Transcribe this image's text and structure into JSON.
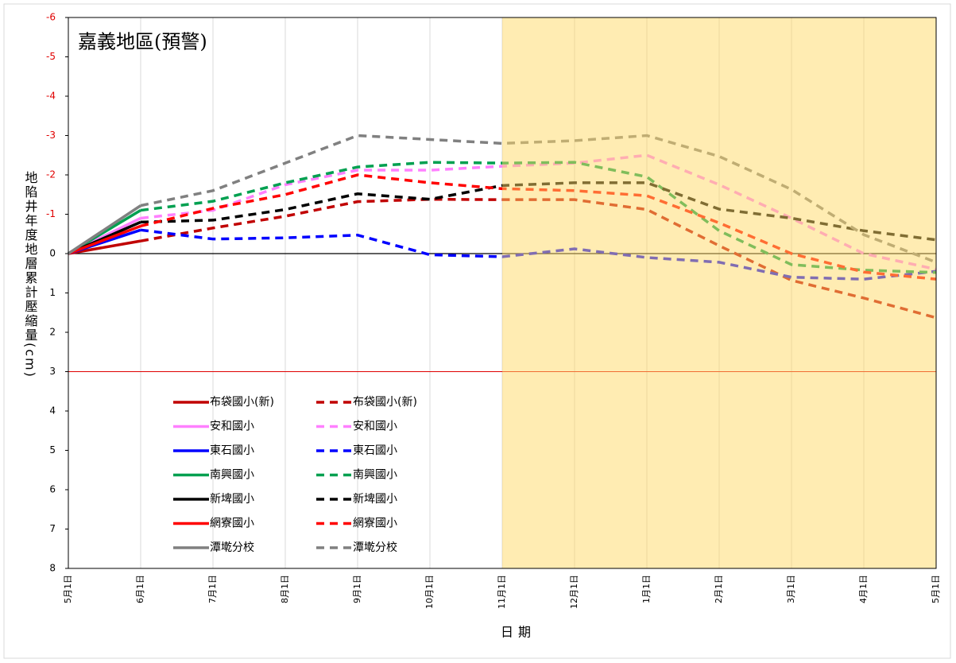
{
  "chart_data": {
    "type": "line",
    "title": "嘉義地區(預警)",
    "xlabel": "日期",
    "ylabel": "地陷井年度地層累計壓縮量(cm)",
    "categories": [
      "5月1日",
      "6月1日",
      "7月1日",
      "8月1日",
      "9月1日",
      "10月1日",
      "11月1日",
      "12月1日",
      "1月1日",
      "2月1日",
      "3月1日",
      "4月1日",
      "5月1日"
    ],
    "ylim": [
      -6,
      8
    ],
    "y_reversed": true,
    "yticks": [
      -6,
      -5,
      -4,
      -3,
      -2,
      -1,
      0,
      1,
      2,
      3,
      4,
      5,
      6,
      7,
      8
    ],
    "negative_tick_color": "#e00000",
    "xgrid": true,
    "zero_line_color": "#000000",
    "threshold": {
      "value": 3,
      "color": "#e00000"
    },
    "shade": {
      "from": 6,
      "to": 12,
      "color": "#ffd966",
      "opacity": 0.5
    },
    "legend": "lower left",
    "series": [
      {
        "name": "布袋國小(新)",
        "color": "#c00000",
        "dash": false,
        "values": [
          0,
          -0.32,
          null,
          null,
          null,
          null,
          null,
          null,
          null,
          null,
          null,
          null,
          null
        ]
      },
      {
        "name": "布袋國小(新)",
        "color": "#c00000",
        "dash": true,
        "values": [
          null,
          -0.32,
          -0.65,
          -0.95,
          -1.32,
          -1.38,
          -1.37,
          -1.37,
          -1.12,
          -0.2,
          0.68,
          1.13,
          1.63
        ]
      },
      {
        "name": "安和國小",
        "color": "#ff80ff",
        "dash": false,
        "values": [
          0,
          -0.9,
          null,
          null,
          null,
          null,
          null,
          null,
          null,
          null,
          null,
          null,
          null
        ]
      },
      {
        "name": "安和國小",
        "color": "#ff80ff",
        "dash": true,
        "values": [
          null,
          -0.9,
          -1.1,
          -1.75,
          -2.12,
          -2.12,
          -2.22,
          -2.3,
          -2.5,
          -1.75,
          -0.9,
          0,
          0.4
        ]
      },
      {
        "name": "東石國小",
        "color": "#0000ff",
        "dash": false,
        "values": [
          0,
          -0.6,
          null,
          null,
          null,
          null,
          null,
          null,
          null,
          null,
          null,
          null,
          null
        ]
      },
      {
        "name": "東石國小",
        "color": "#0000ff",
        "dash": true,
        "values": [
          null,
          -0.6,
          -0.37,
          -0.4,
          -0.47,
          0.03,
          0.08,
          -0.12,
          0.1,
          0.22,
          0.6,
          0.65,
          0.45
        ]
      },
      {
        "name": "南興國小",
        "color": "#00a050",
        "dash": false,
        "values": [
          0,
          -1.1,
          null,
          null,
          null,
          null,
          null,
          null,
          null,
          null,
          null,
          null,
          null
        ]
      },
      {
        "name": "南興國小",
        "color": "#00a050",
        "dash": true,
        "values": [
          null,
          -1.1,
          -1.33,
          -1.8,
          -2.2,
          -2.32,
          -2.3,
          -2.32,
          -1.95,
          -0.58,
          0.28,
          0.42,
          0.48
        ]
      },
      {
        "name": "新埤國小",
        "color": "#000000",
        "dash": false,
        "values": [
          0,
          -0.8,
          null,
          null,
          null,
          null,
          null,
          null,
          null,
          null,
          null,
          null,
          null
        ]
      },
      {
        "name": "新埤國小",
        "color": "#000000",
        "dash": true,
        "values": [
          null,
          -0.8,
          -0.85,
          -1.12,
          -1.52,
          -1.38,
          -1.73,
          -1.8,
          -1.8,
          -1.13,
          -0.9,
          -0.58,
          -0.35
        ]
      },
      {
        "name": "網寮國小",
        "color": "#ff0000",
        "dash": false,
        "values": [
          0,
          -0.7,
          null,
          null,
          null,
          null,
          null,
          null,
          null,
          null,
          null,
          null,
          null
        ]
      },
      {
        "name": "網寮國小",
        "color": "#ff0000",
        "dash": true,
        "values": [
          null,
          -0.7,
          -1.15,
          -1.5,
          -2.0,
          -1.8,
          -1.65,
          -1.6,
          -1.47,
          -0.78,
          0,
          0.47,
          0.65
        ]
      },
      {
        "name": "潭墘分校",
        "color": "#808080",
        "dash": false,
        "values": [
          0,
          -1.22,
          null,
          null,
          null,
          null,
          null,
          null,
          null,
          null,
          null,
          null,
          null
        ]
      },
      {
        "name": "潭墘分校",
        "color": "#808080",
        "dash": true,
        "values": [
          null,
          -1.22,
          -1.6,
          -2.3,
          -3.0,
          -2.9,
          -2.8,
          -2.87,
          -3.0,
          -2.47,
          -1.63,
          -0.48,
          0.22
        ]
      }
    ]
  }
}
